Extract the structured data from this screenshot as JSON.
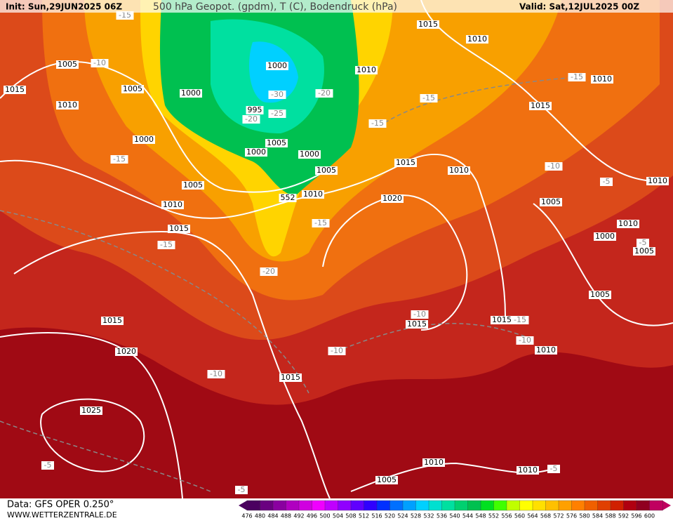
{
  "header": {
    "init": "Init: Sun,29JUN2025 06Z",
    "title": "500 hPa Geopot. (gpdm), T (C), Bodendruck (hPa)",
    "valid": "Valid: Sat,12JUL2025 00Z"
  },
  "footer": {
    "source": "Data: GFS OPER 0.250°",
    "website": "WWW.WETTERZENTRALE.DE"
  },
  "isobar_labels": [
    "1015",
    "1010",
    "1005",
    "1010",
    "1000",
    "1005",
    "1015",
    "1000",
    "1010",
    "1010",
    "995",
    "1015",
    "1000",
    "1005",
    "1000",
    "1000",
    "1015",
    "1005",
    "1010",
    "1010",
    "1005",
    "1010",
    "552",
    "1010",
    "1020",
    "1005",
    "1015",
    "1010",
    "1000",
    "1005",
    "1005",
    "1015",
    "1015",
    "1015",
    "1010",
    "1020",
    "1015",
    "1025",
    "1010",
    "1010",
    "1005"
  ],
  "temperature_labels": [
    "-15",
    "-10",
    "-30",
    "-20",
    "-25",
    "-20",
    "-15",
    "-15",
    "-15",
    "-15",
    "-10",
    "-5",
    "-15",
    "-15",
    "-20",
    "-5",
    "-10",
    "-15",
    "-10",
    "-10",
    "-10",
    "-5",
    "-5",
    "-5"
  ],
  "colorbar": {
    "labels": [
      476,
      480,
      484,
      488,
      492,
      496,
      500,
      504,
      508,
      512,
      516,
      520,
      524,
      528,
      532,
      536,
      540,
      544,
      548,
      552,
      556,
      560,
      564,
      568,
      572,
      576,
      580,
      584,
      588,
      592,
      596,
      600
    ],
    "colors": [
      "#4b0060",
      "#6a0080",
      "#8a00a0",
      "#b000c0",
      "#d000e0",
      "#f000ff",
      "#c000ff",
      "#9000ff",
      "#6000ff",
      "#3000ff",
      "#0030ff",
      "#0070ff",
      "#00a0ff",
      "#00d0ff",
      "#00e0d0",
      "#00e0a0",
      "#00d070",
      "#00c050",
      "#00e020",
      "#40ff00",
      "#c0ff00",
      "#ffff00",
      "#ffe000",
      "#ffc000",
      "#ffa000",
      "#ff8000",
      "#f06000",
      "#e04000",
      "#d02000",
      "#b00010",
      "#900020",
      "#c00060"
    ]
  }
}
